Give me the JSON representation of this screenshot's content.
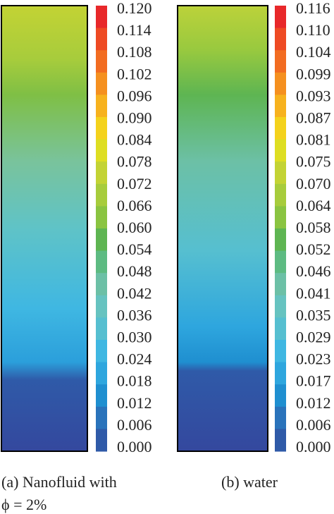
{
  "panels": [
    {
      "colorbar_labels": [
        "0.120",
        "0.114",
        "0.108",
        "0.102",
        "0.096",
        "0.090",
        "0.084",
        "0.078",
        "0.072",
        "0.066",
        "0.060",
        "0.054",
        "0.048",
        "0.042",
        "0.036",
        "0.030",
        "0.024",
        "0.018",
        "0.012",
        "0.006",
        "0.000"
      ],
      "caption": [
        "(a)  Nanofluid  with",
        "ϕ = 2%"
      ]
    },
    {
      "colorbar_labels": [
        "0.116",
        "0.110",
        "0.104",
        "0.099",
        "0.093",
        "0.087",
        "0.081",
        "0.075",
        "0.070",
        "0.064",
        "0.058",
        "0.052",
        "0.046",
        "0.041",
        "0.035",
        "0.029",
        "0.023",
        "0.017",
        "0.012",
        "0.006",
        "0.000"
      ],
      "caption": [
        "(b)  water"
      ]
    }
  ]
}
